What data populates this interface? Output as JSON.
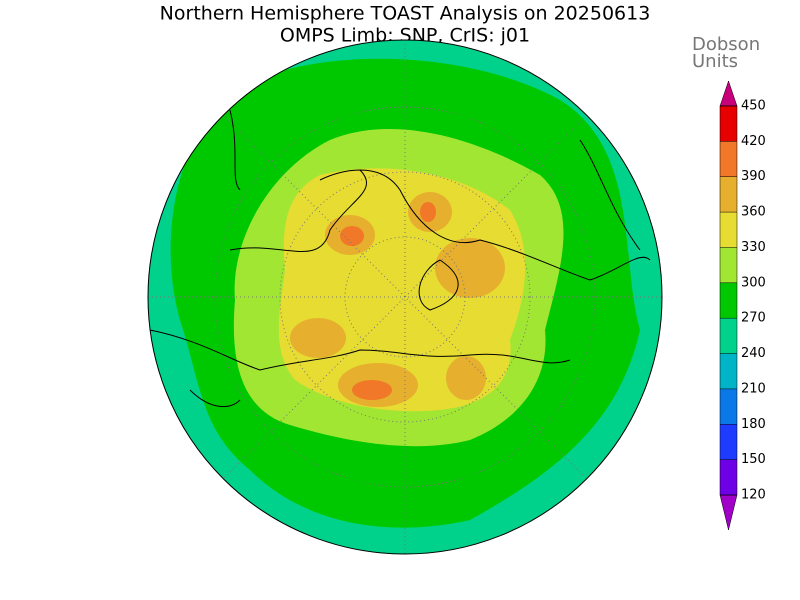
{
  "title": [
    "Northern Hemisphere TOAST Analysis on 20250613",
    "OMPS Limb: SNP, CrIS: j01"
  ],
  "colorbar": {
    "label": [
      "Dobson",
      "Units"
    ],
    "ticks": [
      120,
      150,
      180,
      210,
      240,
      270,
      300,
      330,
      360,
      390,
      420,
      450
    ],
    "colors": [
      "#a000c8",
      "#6e00e6",
      "#1e3cff",
      "#0a78e6",
      "#00b4c8",
      "#00d28c",
      "#00c800",
      "#a0e632",
      "#e6dc32",
      "#e6af2d",
      "#f07828",
      "#e60000",
      "#c8007a"
    ]
  }
}
